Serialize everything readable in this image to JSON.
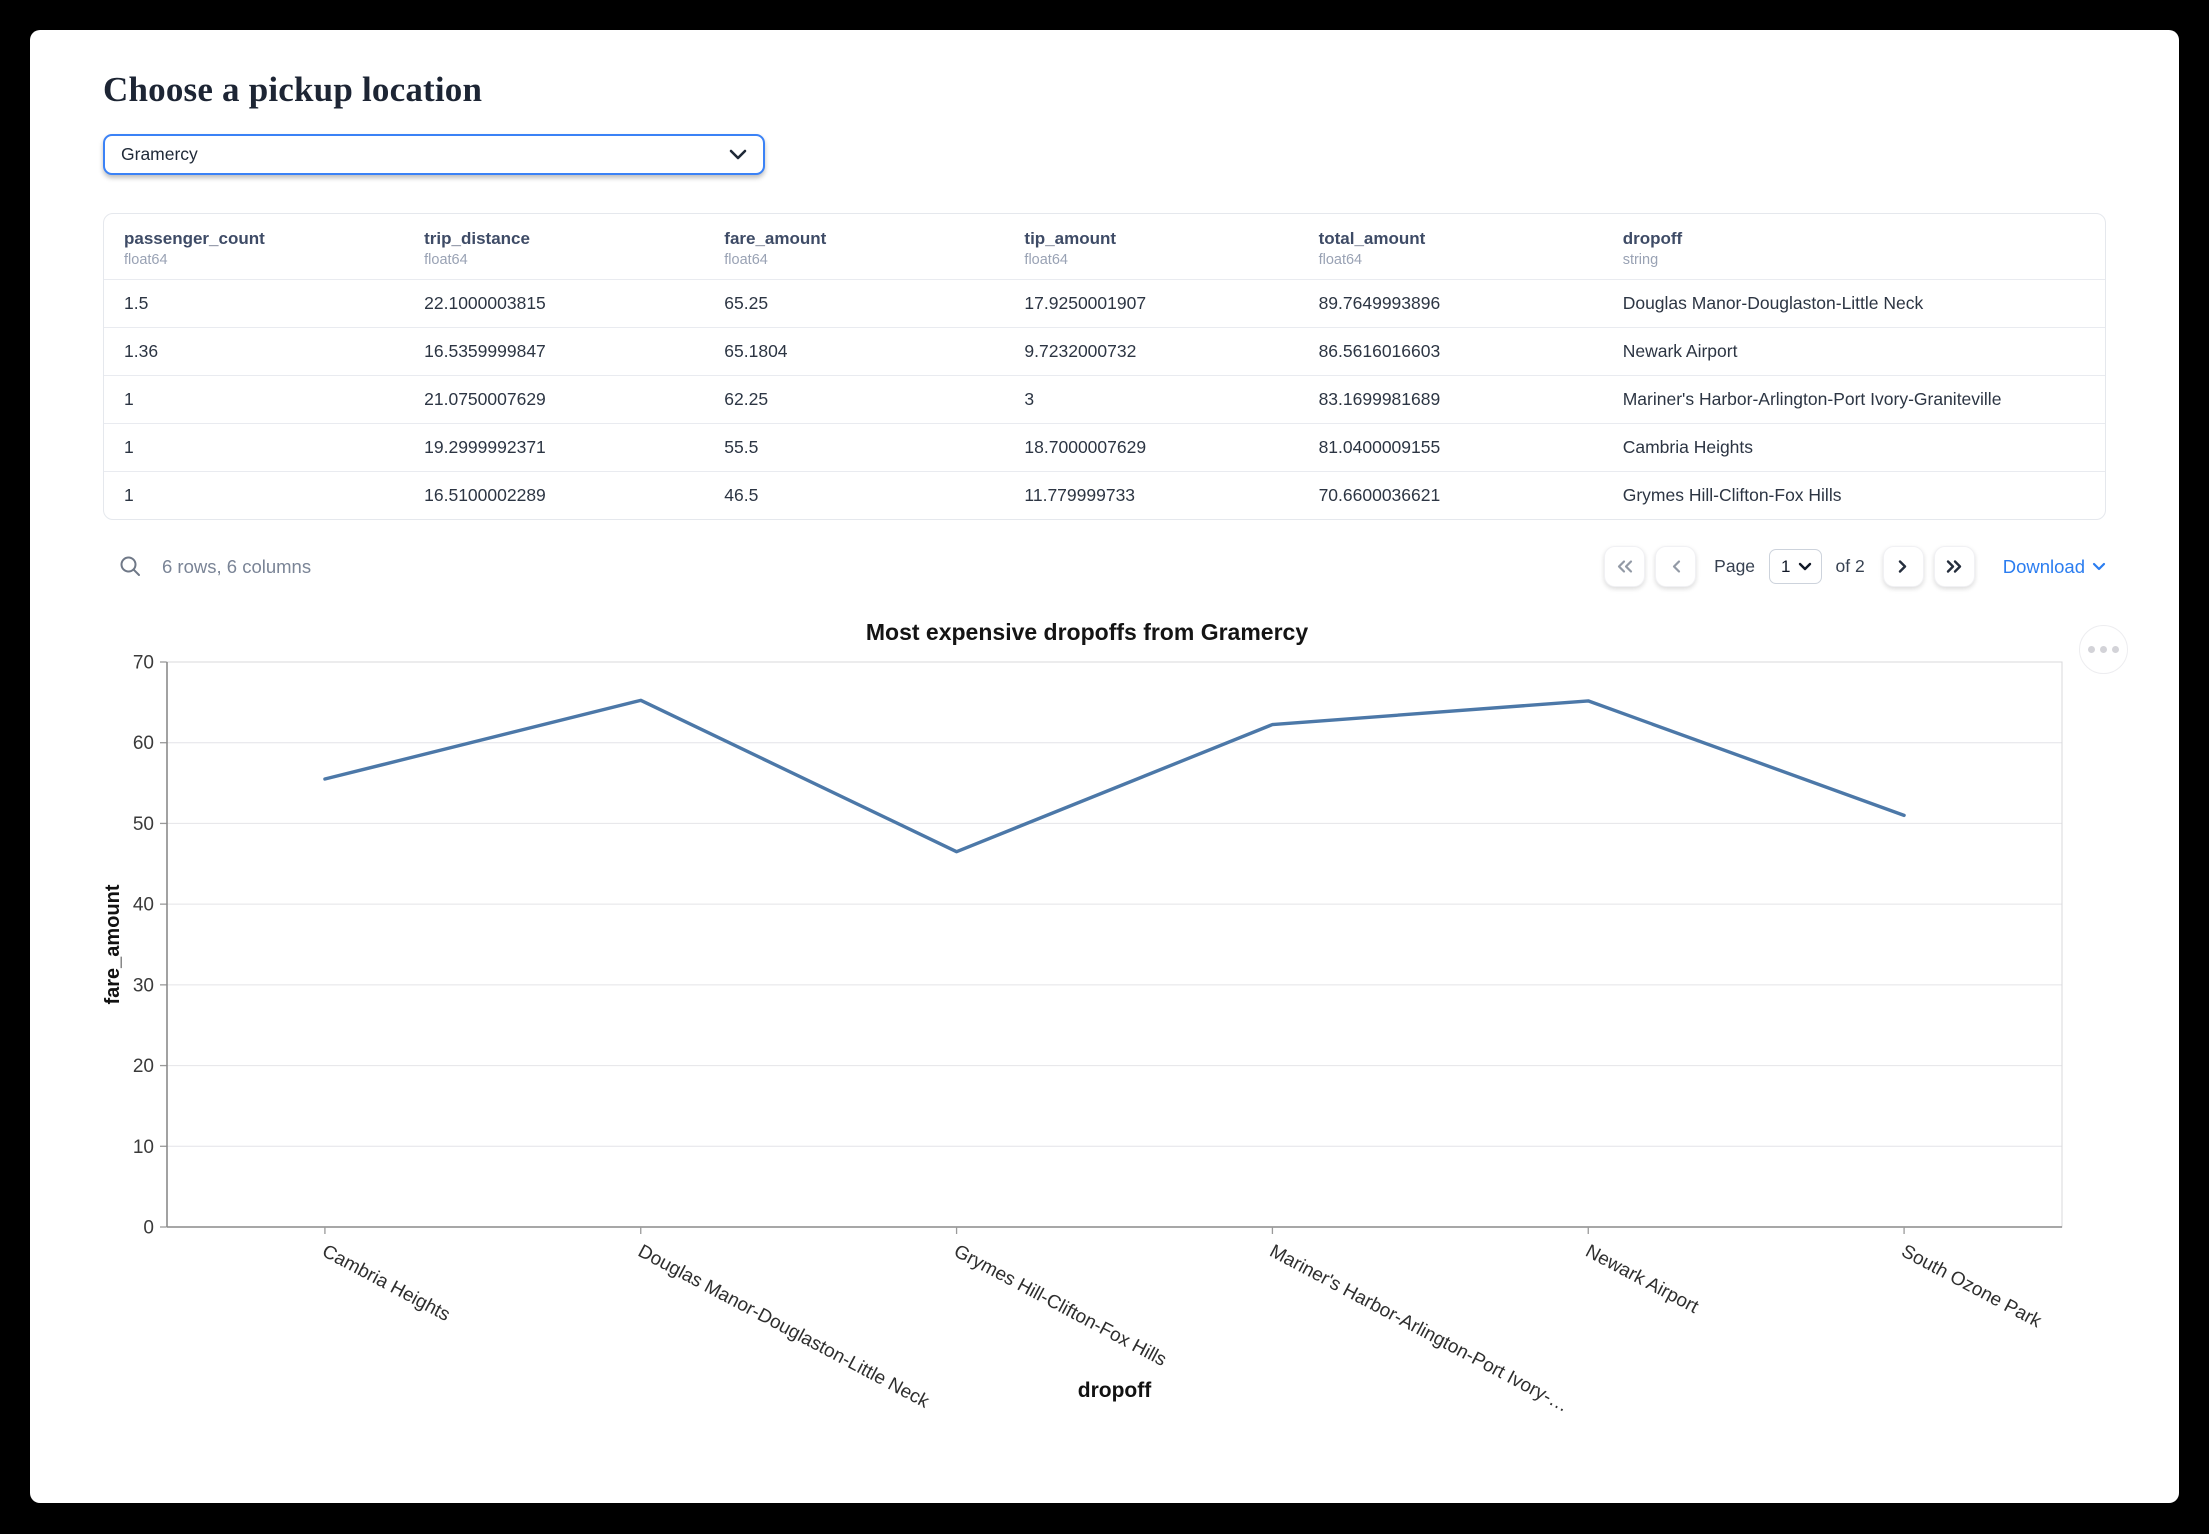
{
  "page": {
    "title": "Choose a pickup location"
  },
  "pickup_select": {
    "value": "Gramercy"
  },
  "table": {
    "columns": [
      {
        "name": "passenger_count",
        "type": "float64"
      },
      {
        "name": "trip_distance",
        "type": "float64"
      },
      {
        "name": "fare_amount",
        "type": "float64"
      },
      {
        "name": "tip_amount",
        "type": "float64"
      },
      {
        "name": "total_amount",
        "type": "float64"
      },
      {
        "name": "dropoff",
        "type": "string"
      }
    ],
    "rows": [
      [
        "1.5",
        "22.1000003815",
        "65.25",
        "17.9250001907",
        "89.7649993896",
        "Douglas Manor-Douglaston-Little Neck"
      ],
      [
        "1.36",
        "16.5359999847",
        "65.1804",
        "9.7232000732",
        "86.5616016603",
        "Newark Airport"
      ],
      [
        "1",
        "21.0750007629",
        "62.25",
        "3",
        "83.1699981689",
        "Mariner's Harbor-Arlington-Port Ivory-Graniteville"
      ],
      [
        "1",
        "19.2999992371",
        "55.5",
        "18.7000007629",
        "81.0400009155",
        "Cambria Heights"
      ],
      [
        "1",
        "16.5100002289",
        "46.5",
        "11.779999733",
        "70.6600036621",
        "Grymes Hill-Clifton-Fox Hills"
      ]
    ]
  },
  "footer": {
    "summary": "6 rows, 6 columns",
    "page_label": "Page",
    "page_value": "1",
    "page_total": "of 2",
    "download_label": "Download"
  },
  "chart_data": {
    "type": "line",
    "title": "Most expensive dropoffs from Gramercy",
    "xlabel": "dropoff",
    "ylabel": "fare_amount",
    "categories": [
      "Cambria Heights",
      "Douglas Manor-Douglaston-Little Neck",
      "Grymes Hill-Clifton-Fox Hills",
      "Mariner's Harbor-Arlington-Port Ivory-Graniteville",
      "Newark Airport",
      "South Ozone Park"
    ],
    "tick_labels": [
      "Cambria Heights",
      "Douglas Manor-Douglaston-Little Neck",
      "Grymes Hill-Clifton-Fox Hills",
      "Mariner's Harbor-Arlington-Port Ivory-…",
      "Newark Airport",
      "South Ozone Park"
    ],
    "values": [
      55.5,
      65.25,
      46.5,
      62.25,
      65.1804,
      51
    ],
    "ylim": [
      0,
      70
    ],
    "ytick_step": 10,
    "grid": true,
    "legend": "none",
    "line_color": "#4c78a8"
  },
  "colors": {
    "accent_blue": "#3b82f6",
    "link_blue": "#2b7df0",
    "line_blue": "#4c78a8"
  }
}
